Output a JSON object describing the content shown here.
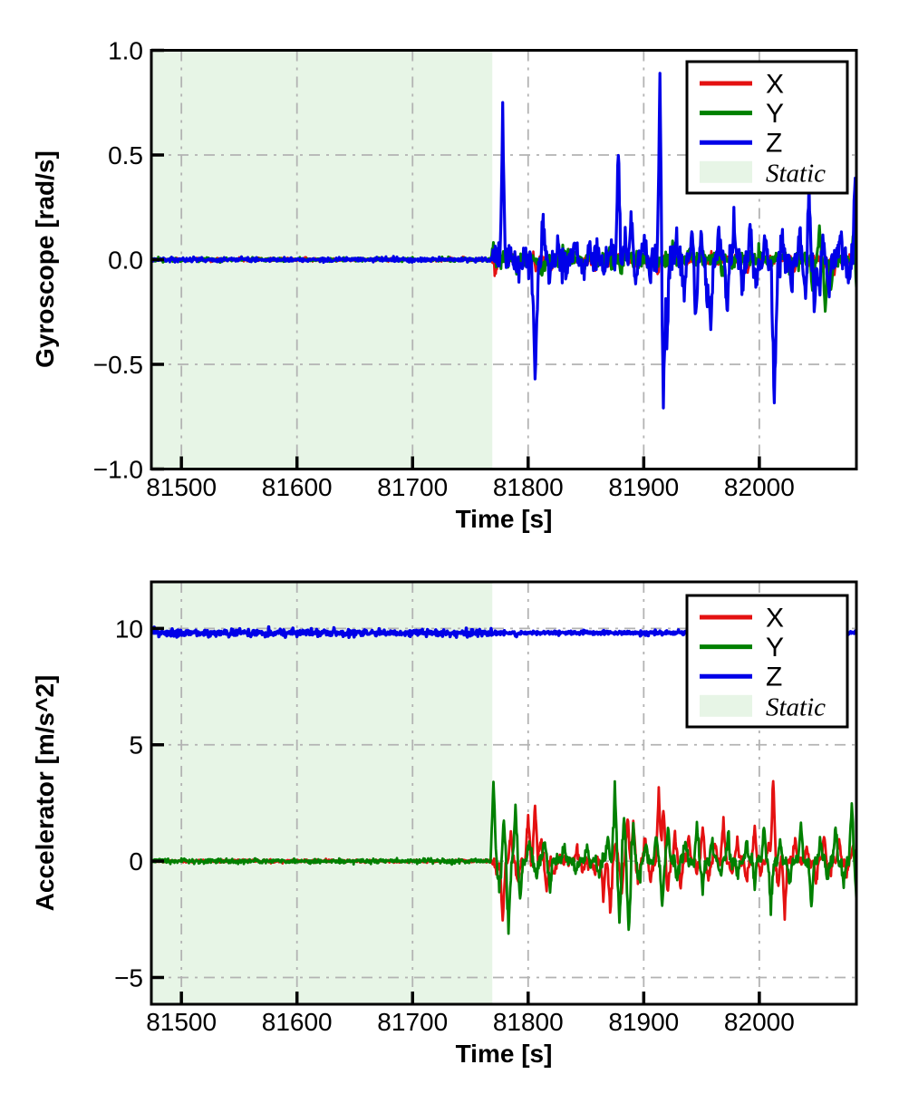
{
  "colors": {
    "x_series": "#e41111",
    "y_series": "#008000",
    "z_series": "#0000e8",
    "static_fill": "#e7f5e6",
    "grid": "#b3b3b3",
    "spine": "#000000",
    "legend_bg": "#ffffff"
  },
  "chart_data": [
    {
      "type": "line",
      "title": "",
      "xlabel": "Time [s]",
      "ylabel": "Gyroscope [rad/s]",
      "xlim": [
        81474,
        82084
      ],
      "ylim": [
        -1.0,
        1.0
      ],
      "xticks": [
        81500,
        81600,
        81700,
        81800,
        81900,
        82000
      ],
      "xtick_labels": [
        "81500",
        "81600",
        "81700",
        "81800",
        "81900",
        "82000"
      ],
      "ytick_vals": [
        1.0,
        0.5,
        0.0,
        -0.5,
        -1.0
      ],
      "ytick_labels": [
        "1.0",
        "0.5",
        "0.0",
        "−0.5",
        "−1.0"
      ],
      "grid": {
        "show": true,
        "style": "dash-dot",
        "color": "#b3b3b3"
      },
      "static_region": {
        "label": "Static",
        "from": 81474,
        "to": 81769,
        "fill": "#e7f5e6"
      },
      "legend": {
        "position": "upper right",
        "entries": [
          {
            "label": "X",
            "swatch": "line",
            "color": "#e41111",
            "italic": false
          },
          {
            "label": "Y",
            "swatch": "line",
            "color": "#008000",
            "italic": false
          },
          {
            "label": "Z",
            "swatch": "line",
            "color": "#0000e8",
            "italic": false
          },
          {
            "label": "Static",
            "swatch": "patch",
            "color": "#e7f5e6",
            "italic": true
          }
        ]
      },
      "sample_step": 0.5,
      "spike_width": 2.2,
      "series": [
        {
          "name": "X",
          "color": "#e41111",
          "lw": 2.6,
          "baseline": 0,
          "noise_static": 0.004,
          "noise_dynamic": 0.013,
          "seed": 11,
          "spikes": [
            [
              81772,
              -0.06
            ],
            [
              81807,
              -0.05
            ],
            [
              81820,
              -0.05
            ],
            [
              81835,
              0.04
            ],
            [
              81858,
              -0.05
            ],
            [
              81885,
              0.04
            ],
            [
              81912,
              -0.06
            ],
            [
              81950,
              0.05
            ],
            [
              81990,
              -0.05
            ],
            [
              82030,
              -0.04
            ],
            [
              82055,
              -0.06
            ],
            [
              82065,
              -0.07
            ]
          ]
        },
        {
          "name": "Y",
          "color": "#008000",
          "lw": 3.0,
          "baseline": 0,
          "noise_static": 0.004,
          "noise_dynamic": 0.018,
          "seed": 22,
          "spikes": [
            [
              81770,
              0.08
            ],
            [
              81790,
              -0.06
            ],
            [
              81812,
              -0.07
            ],
            [
              81830,
              0.05
            ],
            [
              81848,
              -0.06
            ],
            [
              81870,
              0.05
            ],
            [
              81880,
              -0.05
            ],
            [
              81905,
              -0.06
            ],
            [
              81925,
              0.06
            ],
            [
              81940,
              0.05
            ],
            [
              81968,
              -0.05
            ],
            [
              82000,
              0.05
            ],
            [
              82025,
              -0.05
            ],
            [
              82046,
              -0.15
            ],
            [
              82052,
              0.16
            ],
            [
              82057,
              -0.27
            ],
            [
              82062,
              -0.14
            ],
            [
              82082,
              0.17
            ],
            [
              82084,
              -0.15
            ]
          ]
        },
        {
          "name": "Z",
          "color": "#0000e8",
          "lw": 3.2,
          "baseline": 0,
          "noise_static": 0.005,
          "noise_dynamic": 0.035,
          "seed": 33,
          "spikes": [
            [
              81778,
              0.7
            ],
            [
              81784,
              0.09
            ],
            [
              81806,
              -0.58,
              3
            ],
            [
              81813,
              0.22
            ],
            [
              81818,
              -0.12
            ],
            [
              81826,
              0.06
            ],
            [
              81833,
              -0.05
            ],
            [
              81840,
              0.07
            ],
            [
              81848,
              -0.06
            ],
            [
              81853,
              0.08
            ],
            [
              81860,
              0.06
            ],
            [
              81865,
              -0.07
            ],
            [
              81872,
              0.05
            ],
            [
              81878,
              0.52
            ],
            [
              81884,
              0.1
            ],
            [
              81889,
              0.21
            ],
            [
              81893,
              -0.13
            ],
            [
              81900,
              0.09
            ],
            [
              81905,
              -0.09
            ],
            [
              81914,
              0.84
            ],
            [
              81917,
              -0.7
            ],
            [
              81920,
              -0.43
            ],
            [
              81928,
              0.11
            ],
            [
              81935,
              -0.16
            ],
            [
              81942,
              0.12
            ],
            [
              81945,
              -0.3
            ],
            [
              81950,
              0.11
            ],
            [
              81955,
              -0.23
            ],
            [
              81958,
              -0.33
            ],
            [
              81965,
              0.15
            ],
            [
              81972,
              -0.26
            ],
            [
              81978,
              0.16
            ],
            [
              81985,
              -0.13
            ],
            [
              81992,
              0.17
            ],
            [
              81998,
              -0.11
            ],
            [
              82005,
              0.13
            ],
            [
              82013,
              -0.71,
              3
            ],
            [
              82020,
              0.13
            ],
            [
              82028,
              -0.11
            ],
            [
              82035,
              0.12
            ],
            [
              82040,
              -0.2
            ],
            [
              82043,
              0.35
            ],
            [
              82048,
              -0.22
            ],
            [
              82052,
              -0.14
            ],
            [
              82055,
              0.11
            ],
            [
              82060,
              -0.18
            ],
            [
              82070,
              0.13
            ],
            [
              82078,
              -0.09
            ],
            [
              82083,
              0.42
            ]
          ]
        }
      ]
    },
    {
      "type": "line",
      "title": "",
      "xlabel": "Time [s]",
      "ylabel": "Accelerator [m/s^2]",
      "xlim": [
        81474,
        82084
      ],
      "ylim": [
        -6.15,
        12.0
      ],
      "xticks": [
        81500,
        81600,
        81700,
        81800,
        81900,
        82000
      ],
      "xtick_labels": [
        "81500",
        "81600",
        "81700",
        "81800",
        "81900",
        "82000"
      ],
      "ytick_vals": [
        10,
        5,
        0,
        -5
      ],
      "ytick_labels": [
        "10",
        "5",
        "0",
        "−5"
      ],
      "grid": {
        "show": true,
        "style": "dash-dot",
        "color": "#b3b3b3"
      },
      "static_region": {
        "label": "Static",
        "from": 81474,
        "to": 81769,
        "fill": "#e7f5e6"
      },
      "legend": {
        "position": "upper right",
        "entries": [
          {
            "label": "X",
            "swatch": "line",
            "color": "#e41111",
            "italic": false
          },
          {
            "label": "Y",
            "swatch": "line",
            "color": "#008000",
            "italic": false
          },
          {
            "label": "Z",
            "swatch": "line",
            "color": "#0000e8",
            "italic": false
          },
          {
            "label": "Static",
            "swatch": "patch",
            "color": "#e7f5e6",
            "italic": true
          }
        ]
      },
      "sample_step": 0.5,
      "spike_width": 2.5,
      "series": [
        {
          "name": "X",
          "color": "#e41111",
          "lw": 2.8,
          "baseline": 0,
          "noise_static": 0.03,
          "noise_dynamic": 0.13,
          "seed": 44,
          "spikes": [
            [
              81773,
              -0.5
            ],
            [
              81778,
              -2.9
            ],
            [
              81785,
              1.2
            ],
            [
              81791,
              -1.1
            ],
            [
              81800,
              2.1
            ],
            [
              81806,
              2.5
            ],
            [
              81811,
              0.9
            ],
            [
              81816,
              -1.2
            ],
            [
              81822,
              -0.7
            ],
            [
              81842,
              0.5
            ],
            [
              81848,
              -0.5
            ],
            [
              81858,
              -0.6
            ],
            [
              81865,
              -1.5
            ],
            [
              81871,
              -2.1
            ],
            [
              81876,
              0.7
            ],
            [
              81881,
              -1.3
            ],
            [
              81886,
              1.9
            ],
            [
              81891,
              1.7
            ],
            [
              81895,
              -0.9
            ],
            [
              81901,
              0.9
            ],
            [
              81906,
              -0.8
            ],
            [
              81913,
              3.0
            ],
            [
              81917,
              2.4
            ],
            [
              81921,
              -1.3
            ],
            [
              81927,
              1.1
            ],
            [
              81932,
              -1.0
            ],
            [
              81939,
              1.2
            ],
            [
              81946,
              -0.7
            ],
            [
              81951,
              1.5
            ],
            [
              81956,
              -0.9
            ],
            [
              81962,
              0.8
            ],
            [
              81969,
              1.9
            ],
            [
              81976,
              -0.6
            ],
            [
              81981,
              0.9
            ],
            [
              81989,
              -0.8
            ],
            [
              81996,
              1.3
            ],
            [
              82001,
              -0.6
            ],
            [
              82008,
              0.7
            ],
            [
              82012,
              3.5
            ],
            [
              82016,
              -1.1
            ],
            [
              82022,
              -2.3
            ],
            [
              82031,
              0.9
            ],
            [
              82041,
              0.7
            ],
            [
              82049,
              -1.0
            ],
            [
              82056,
              1.0
            ],
            [
              82061,
              -0.6
            ],
            [
              82069,
              0.9
            ],
            [
              82076,
              -0.5
            ],
            [
              82081,
              0.6
            ]
          ]
        },
        {
          "name": "Y",
          "color": "#008000",
          "lw": 2.8,
          "baseline": 0,
          "noise_static": 0.05,
          "noise_dynamic": 0.15,
          "seed": 55,
          "spikes": [
            [
              81770,
              3.5
            ],
            [
              81775,
              -1.3
            ],
            [
              81779,
              1.5
            ],
            [
              81783,
              -2.8
            ],
            [
              81789,
              2.2
            ],
            [
              81793,
              -1.6
            ],
            [
              81801,
              0.9
            ],
            [
              81807,
              -0.8
            ],
            [
              81814,
              1.0
            ],
            [
              81819,
              -1.1
            ],
            [
              81831,
              0.5
            ],
            [
              81841,
              -0.4
            ],
            [
              81851,
              0.6
            ],
            [
              81861,
              -0.5
            ],
            [
              81869,
              1.0
            ],
            [
              81875,
              3.2
            ],
            [
              81879,
              -2.6
            ],
            [
              81883,
              1.8
            ],
            [
              81887,
              -3.1
            ],
            [
              81891,
              1.5
            ],
            [
              81896,
              -0.9
            ],
            [
              81902,
              0.7
            ],
            [
              81911,
              1.2
            ],
            [
              81916,
              -1.9
            ],
            [
              81921,
              1.4
            ],
            [
              81929,
              -0.8
            ],
            [
              81936,
              0.9
            ],
            [
              81946,
              1.6
            ],
            [
              81951,
              -1.2
            ],
            [
              81959,
              1.0
            ],
            [
              81966,
              -0.7
            ],
            [
              81973,
              1.1
            ],
            [
              81981,
              -0.6
            ],
            [
              81989,
              0.8
            ],
            [
              81996,
              -1.0
            ],
            [
              82004,
              1.4
            ],
            [
              82010,
              -2.2
            ],
            [
              82018,
              1.1
            ],
            [
              82026,
              -0.9
            ],
            [
              82036,
              1.3
            ],
            [
              82045,
              -2.0
            ],
            [
              82053,
              1.0
            ],
            [
              82059,
              -0.7
            ],
            [
              82066,
              1.5
            ],
            [
              82073,
              -1.0
            ],
            [
              82080,
              2.5
            ],
            [
              82084,
              -1.6
            ]
          ]
        },
        {
          "name": "Z",
          "color": "#0000e8",
          "lw": 3.6,
          "baseline": 9.81,
          "noise_static": 0.07,
          "noise_dynamic": 0.04,
          "seed": 66,
          "spikes": [
            [
              81790,
              -0.12
            ],
            [
              81930,
              0.1
            ],
            [
              82060,
              -0.1
            ]
          ]
        }
      ]
    }
  ]
}
